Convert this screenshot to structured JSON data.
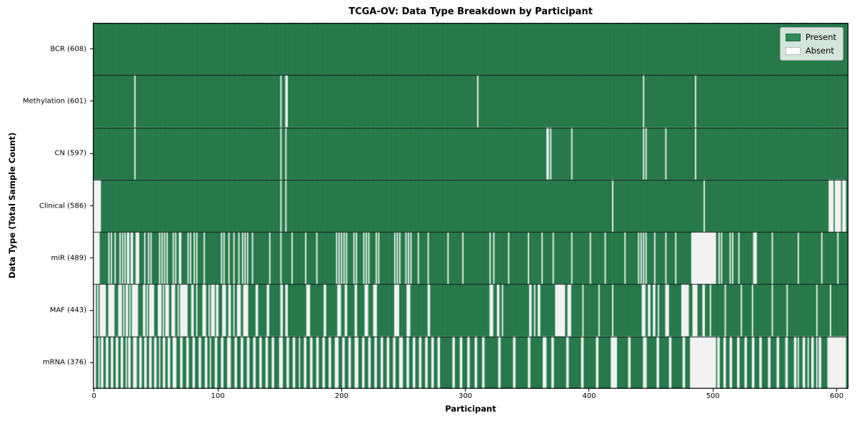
{
  "title": "TCGA-OV: Data Type Breakdown by Participant",
  "chart_data": {
    "type": "heatmap",
    "title": "TCGA-OV: Data Type Breakdown by Participant",
    "xlabel": "Participant",
    "ylabel": "Data Type (Total Sample Count)",
    "x_ticks": [
      0,
      100,
      200,
      300,
      400,
      500,
      600
    ],
    "n_participants": 608,
    "xlim": [
      -1,
      609.5
    ],
    "grid": false,
    "colors": {
      "present": "#2e8b57",
      "absent": "#ffffff",
      "bar_edge_on_present": "rgba(0,0,0,0.38)",
      "bar_edge_on_absent": "rgba(0,0,0,0.15)",
      "row_separator": "#000000",
      "plot_border": "#000000"
    },
    "legend": {
      "position": "upper right",
      "entries": [
        {
          "label": "Present",
          "color": "#2e8b57"
        },
        {
          "label": "Absent",
          "color": "#ffffff"
        }
      ]
    },
    "rows": [
      {
        "name": "BCR",
        "label": "BCR (608)",
        "present_count": 608,
        "absent_ranges": []
      },
      {
        "name": "Methylation",
        "label": "Methylation (601)",
        "present_count": 601,
        "absent_ranges": [
          [
            33,
            33
          ],
          [
            151,
            151
          ],
          [
            155,
            156
          ],
          [
            310,
            310
          ],
          [
            444,
            444
          ],
          [
            486,
            486
          ]
        ]
      },
      {
        "name": "CN",
        "label": "CN (597)",
        "present_count": 597,
        "absent_ranges": [
          [
            33,
            33
          ],
          [
            151,
            151
          ],
          [
            155,
            155
          ],
          [
            366,
            367
          ],
          [
            369,
            369
          ],
          [
            386,
            386
          ],
          [
            444,
            444
          ],
          [
            446,
            446
          ],
          [
            462,
            462
          ],
          [
            486,
            486
          ]
        ]
      },
      {
        "name": "Clinical",
        "label": "Clinical (586)",
        "present_count": 586,
        "absent_ranges": [
          [
            0,
            5
          ],
          [
            151,
            151
          ],
          [
            155,
            155
          ],
          [
            419,
            419
          ],
          [
            493,
            493
          ],
          [
            594,
            597
          ],
          [
            599,
            603
          ],
          [
            605,
            607
          ]
        ]
      },
      {
        "name": "miR",
        "label": "miR (489)",
        "present_count": 489,
        "absent_ranges": [
          [
            0,
            4
          ],
          [
            12,
            12
          ],
          [
            14,
            14
          ],
          [
            17,
            17
          ],
          [
            21,
            21
          ],
          [
            23,
            23
          ],
          [
            25,
            25
          ],
          [
            27,
            28
          ],
          [
            30,
            31
          ],
          [
            34,
            36
          ],
          [
            41,
            41
          ],
          [
            44,
            44
          ],
          [
            46,
            46
          ],
          [
            53,
            53
          ],
          [
            55,
            55
          ],
          [
            57,
            57
          ],
          [
            59,
            59
          ],
          [
            64,
            64
          ],
          [
            66,
            66
          ],
          [
            69,
            70
          ],
          [
            76,
            76
          ],
          [
            78,
            78
          ],
          [
            81,
            81
          ],
          [
            83,
            83
          ],
          [
            89,
            89
          ],
          [
            103,
            103
          ],
          [
            105,
            105
          ],
          [
            109,
            109
          ],
          [
            113,
            113
          ],
          [
            117,
            117
          ],
          [
            120,
            120
          ],
          [
            122,
            122
          ],
          [
            124,
            124
          ],
          [
            128,
            128
          ],
          [
            142,
            142
          ],
          [
            151,
            151
          ],
          [
            160,
            160
          ],
          [
            171,
            171
          ],
          [
            180,
            180
          ],
          [
            196,
            196
          ],
          [
            198,
            198
          ],
          [
            200,
            200
          ],
          [
            202,
            202
          ],
          [
            204,
            204
          ],
          [
            210,
            210
          ],
          [
            212,
            212
          ],
          [
            218,
            218
          ],
          [
            220,
            220
          ],
          [
            222,
            222
          ],
          [
            228,
            228
          ],
          [
            230,
            230
          ],
          [
            243,
            243
          ],
          [
            245,
            245
          ],
          [
            247,
            247
          ],
          [
            252,
            252
          ],
          [
            254,
            254
          ],
          [
            256,
            256
          ],
          [
            262,
            262
          ],
          [
            270,
            270
          ],
          [
            286,
            286
          ],
          [
            298,
            298
          ],
          [
            320,
            320
          ],
          [
            323,
            323
          ],
          [
            335,
            335
          ],
          [
            351,
            351
          ],
          [
            362,
            362
          ],
          [
            371,
            371
          ],
          [
            386,
            386
          ],
          [
            401,
            401
          ],
          [
            413,
            413
          ],
          [
            429,
            429
          ],
          [
            440,
            440
          ],
          [
            442,
            442
          ],
          [
            444,
            444
          ],
          [
            446,
            446
          ],
          [
            453,
            453
          ],
          [
            462,
            462
          ],
          [
            470,
            470
          ],
          [
            483,
            502
          ],
          [
            505,
            505
          ],
          [
            507,
            507
          ],
          [
            514,
            514
          ],
          [
            516,
            516
          ],
          [
            521,
            521
          ],
          [
            533,
            535
          ],
          [
            548,
            548
          ],
          [
            569,
            569
          ],
          [
            588,
            588
          ],
          [
            601,
            601
          ]
        ]
      },
      {
        "name": "MAF",
        "label": "MAF (443)",
        "present_count": 443,
        "absent_ranges": [
          [
            0,
            1
          ],
          [
            3,
            3
          ],
          [
            5,
            9
          ],
          [
            12,
            16
          ],
          [
            20,
            22
          ],
          [
            24,
            24
          ],
          [
            26,
            27
          ],
          [
            29,
            29
          ],
          [
            31,
            35
          ],
          [
            40,
            41
          ],
          [
            43,
            43
          ],
          [
            45,
            48
          ],
          [
            52,
            54
          ],
          [
            56,
            56
          ],
          [
            58,
            60
          ],
          [
            63,
            65
          ],
          [
            68,
            68
          ],
          [
            70,
            75
          ],
          [
            79,
            80
          ],
          [
            83,
            83
          ],
          [
            88,
            90
          ],
          [
            93,
            93
          ],
          [
            95,
            97
          ],
          [
            99,
            100
          ],
          [
            104,
            106
          ],
          [
            109,
            110
          ],
          [
            113,
            113
          ],
          [
            116,
            118
          ],
          [
            121,
            124
          ],
          [
            131,
            132
          ],
          [
            140,
            141
          ],
          [
            151,
            152
          ],
          [
            155,
            156
          ],
          [
            172,
            174
          ],
          [
            186,
            187
          ],
          [
            197,
            199
          ],
          [
            203,
            204
          ],
          [
            211,
            212
          ],
          [
            219,
            221
          ],
          [
            226,
            228
          ],
          [
            243,
            246
          ],
          [
            253,
            255
          ],
          [
            270,
            271
          ],
          [
            320,
            322
          ],
          [
            326,
            327
          ],
          [
            330,
            330
          ],
          [
            352,
            353
          ],
          [
            356,
            356
          ],
          [
            359,
            360
          ],
          [
            373,
            380
          ],
          [
            383,
            385
          ],
          [
            395,
            395
          ],
          [
            408,
            408
          ],
          [
            419,
            419
          ],
          [
            443,
            445
          ],
          [
            448,
            449
          ],
          [
            452,
            453
          ],
          [
            456,
            456
          ],
          [
            462,
            464
          ],
          [
            475,
            480
          ],
          [
            484,
            487
          ],
          [
            492,
            493
          ],
          [
            498,
            498
          ],
          [
            510,
            510
          ],
          [
            523,
            523
          ],
          [
            532,
            532
          ],
          [
            548,
            548
          ],
          [
            560,
            560
          ],
          [
            584,
            584
          ],
          [
            595,
            595
          ]
        ]
      },
      {
        "name": "mRNA",
        "label": "mRNA (376)",
        "present_count": 376,
        "absent_ranges": [
          [
            0,
            1
          ],
          [
            4,
            4
          ],
          [
            6,
            7
          ],
          [
            10,
            11
          ],
          [
            14,
            15
          ],
          [
            18,
            19
          ],
          [
            22,
            23
          ],
          [
            26,
            26
          ],
          [
            28,
            29
          ],
          [
            32,
            34
          ],
          [
            37,
            38
          ],
          [
            41,
            42
          ],
          [
            45,
            46
          ],
          [
            49,
            50
          ],
          [
            53,
            53
          ],
          [
            56,
            57
          ],
          [
            60,
            61
          ],
          [
            64,
            66
          ],
          [
            70,
            71
          ],
          [
            75,
            76
          ],
          [
            80,
            81
          ],
          [
            85,
            86
          ],
          [
            90,
            91
          ],
          [
            94,
            94
          ],
          [
            98,
            99
          ],
          [
            103,
            104
          ],
          [
            108,
            110
          ],
          [
            114,
            115
          ],
          [
            119,
            120
          ],
          [
            124,
            125
          ],
          [
            129,
            130
          ],
          [
            134,
            135
          ],
          [
            139,
            140
          ],
          [
            144,
            145
          ],
          [
            150,
            152
          ],
          [
            156,
            157
          ],
          [
            161,
            162
          ],
          [
            166,
            166
          ],
          [
            170,
            171
          ],
          [
            175,
            176
          ],
          [
            180,
            181
          ],
          [
            185,
            186
          ],
          [
            190,
            191
          ],
          [
            195,
            197
          ],
          [
            201,
            202
          ],
          [
            206,
            207
          ],
          [
            211,
            213
          ],
          [
            217,
            218
          ],
          [
            222,
            223
          ],
          [
            227,
            228
          ],
          [
            232,
            233
          ],
          [
            237,
            238
          ],
          [
            242,
            243
          ],
          [
            247,
            249
          ],
          [
            253,
            254
          ],
          [
            258,
            259
          ],
          [
            263,
            264
          ],
          [
            268,
            269
          ],
          [
            273,
            274
          ],
          [
            278,
            279
          ],
          [
            290,
            291
          ],
          [
            296,
            297
          ],
          [
            302,
            303
          ],
          [
            308,
            309
          ],
          [
            314,
            315
          ],
          [
            327,
            328
          ],
          [
            339,
            340
          ],
          [
            351,
            352
          ],
          [
            363,
            365
          ],
          [
            370,
            371
          ],
          [
            382,
            383
          ],
          [
            394,
            395
          ],
          [
            406,
            407
          ],
          [
            418,
            422
          ],
          [
            432,
            433
          ],
          [
            444,
            446
          ],
          [
            455,
            456
          ],
          [
            465,
            466
          ],
          [
            476,
            477
          ],
          [
            482,
            502
          ],
          [
            504,
            505
          ],
          [
            509,
            510
          ],
          [
            514,
            515
          ],
          [
            520,
            521
          ],
          [
            526,
            527
          ],
          [
            532,
            533
          ],
          [
            538,
            539
          ],
          [
            545,
            546
          ],
          [
            552,
            553
          ],
          [
            559,
            560
          ],
          [
            566,
            567
          ],
          [
            569,
            569
          ],
          [
            573,
            574
          ],
          [
            577,
            577
          ],
          [
            580,
            581
          ],
          [
            584,
            584
          ],
          [
            586,
            587
          ],
          [
            593,
            607
          ]
        ]
      }
    ]
  }
}
